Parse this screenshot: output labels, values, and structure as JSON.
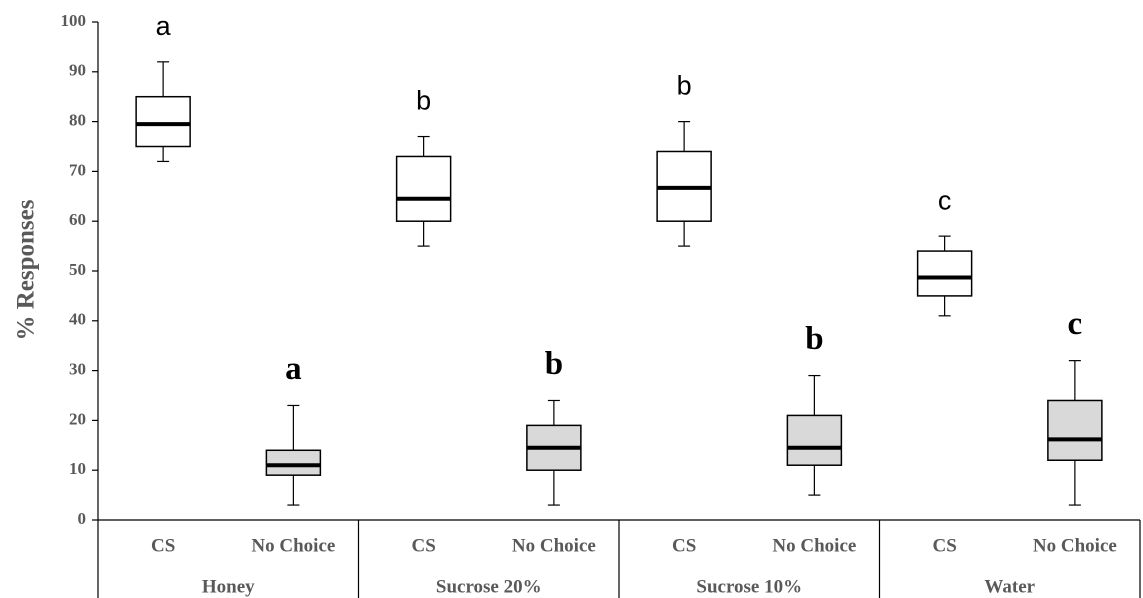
{
  "chart_data": {
    "type": "box",
    "ylabel": "% Responses",
    "ylim": [
      0,
      100
    ],
    "yticks": [
      0,
      10,
      20,
      30,
      40,
      50,
      60,
      70,
      80,
      90,
      100
    ],
    "groups": [
      {
        "name": "Honey",
        "boxes": [
          {
            "label": "CS",
            "letter": "a",
            "min": 72,
            "q1": 75,
            "median": 79.5,
            "q3": 85,
            "max": 92,
            "color": "#ffffff"
          },
          {
            "label": "No Choice",
            "letter": "a",
            "min": 3,
            "q1": 9,
            "median": 11,
            "q3": 14,
            "max": 23,
            "color": "#d9d9d9"
          }
        ]
      },
      {
        "name": "Sucrose 20%",
        "boxes": [
          {
            "label": "CS",
            "letter": "b",
            "min": 55,
            "q1": 60,
            "median": 64.5,
            "q3": 73,
            "max": 77,
            "color": "#ffffff"
          },
          {
            "label": "No Choice",
            "letter": "b",
            "min": 3,
            "q1": 10,
            "median": 14.5,
            "q3": 19,
            "max": 24,
            "color": "#d9d9d9"
          }
        ]
      },
      {
        "name": "Sucrose 10%",
        "boxes": [
          {
            "label": "CS",
            "letter": "b",
            "min": 55,
            "q1": 60,
            "median": 66.7,
            "q3": 74,
            "max": 80,
            "color": "#ffffff"
          },
          {
            "label": "No Choice",
            "letter": "b",
            "min": 5,
            "q1": 11,
            "median": 14.5,
            "q3": 21,
            "max": 29,
            "color": "#d9d9d9"
          }
        ]
      },
      {
        "name": "Water",
        "boxes": [
          {
            "label": "CS",
            "letter": "c",
            "min": 41,
            "q1": 45,
            "median": 48.7,
            "q3": 54,
            "max": 57,
            "color": "#ffffff"
          },
          {
            "label": "No Choice",
            "letter": "c",
            "min": 3,
            "q1": 12,
            "median": 16.2,
            "q3": 24,
            "max": 32,
            "color": "#d9d9d9"
          }
        ]
      }
    ]
  }
}
